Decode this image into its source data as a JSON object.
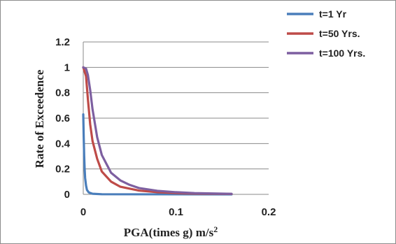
{
  "chart_data": {
    "type": "line",
    "xlabel": "PGA(times g) m/s",
    "xlabel_superscript": "2",
    "ylabel": "Rate of Exceedence",
    "xlim": [
      0,
      0.2
    ],
    "ylim": [
      0,
      1.2
    ],
    "xticks": [
      "0",
      "0.1",
      "0.2"
    ],
    "yticks": [
      "0",
      "0.2",
      "0.4",
      "0.6",
      "0.8",
      "1",
      "1.2"
    ],
    "grid": "horizontal",
    "legend_position": "top-right",
    "series": [
      {
        "name": "t=1 Yr",
        "color": "#4a7ebb",
        "points": [
          [
            0,
            0.63
          ],
          [
            0.0005,
            0.45
          ],
          [
            0.001,
            0.3
          ],
          [
            0.0015,
            0.2
          ],
          [
            0.002,
            0.13
          ],
          [
            0.003,
            0.07
          ],
          [
            0.004,
            0.035
          ],
          [
            0.006,
            0.015
          ],
          [
            0.01,
            0.005
          ],
          [
            0.02,
            0.001
          ],
          [
            0.16,
            0.0
          ]
        ]
      },
      {
        "name": "t=50 Yrs.",
        "color": "#be4b48",
        "points": [
          [
            0,
            1.0
          ],
          [
            0.003,
            0.93
          ],
          [
            0.005,
            0.75
          ],
          [
            0.0075,
            0.55
          ],
          [
            0.01,
            0.42
          ],
          [
            0.015,
            0.28
          ],
          [
            0.02,
            0.18
          ],
          [
            0.03,
            0.1
          ],
          [
            0.04,
            0.06
          ],
          [
            0.06,
            0.03
          ],
          [
            0.08,
            0.017
          ],
          [
            0.1,
            0.01
          ],
          [
            0.12,
            0.006
          ],
          [
            0.16,
            0.003
          ]
        ]
      },
      {
        "name": "t=100 Yrs.",
        "color": "#7d5fa0",
        "points": [
          [
            0,
            1.0
          ],
          [
            0.003,
            0.99
          ],
          [
            0.005,
            0.94
          ],
          [
            0.0075,
            0.82
          ],
          [
            0.01,
            0.67
          ],
          [
            0.015,
            0.45
          ],
          [
            0.02,
            0.31
          ],
          [
            0.03,
            0.17
          ],
          [
            0.04,
            0.11
          ],
          [
            0.05,
            0.075
          ],
          [
            0.06,
            0.05
          ],
          [
            0.08,
            0.028
          ],
          [
            0.1,
            0.017
          ],
          [
            0.12,
            0.01
          ],
          [
            0.16,
            0.004
          ]
        ]
      }
    ]
  }
}
